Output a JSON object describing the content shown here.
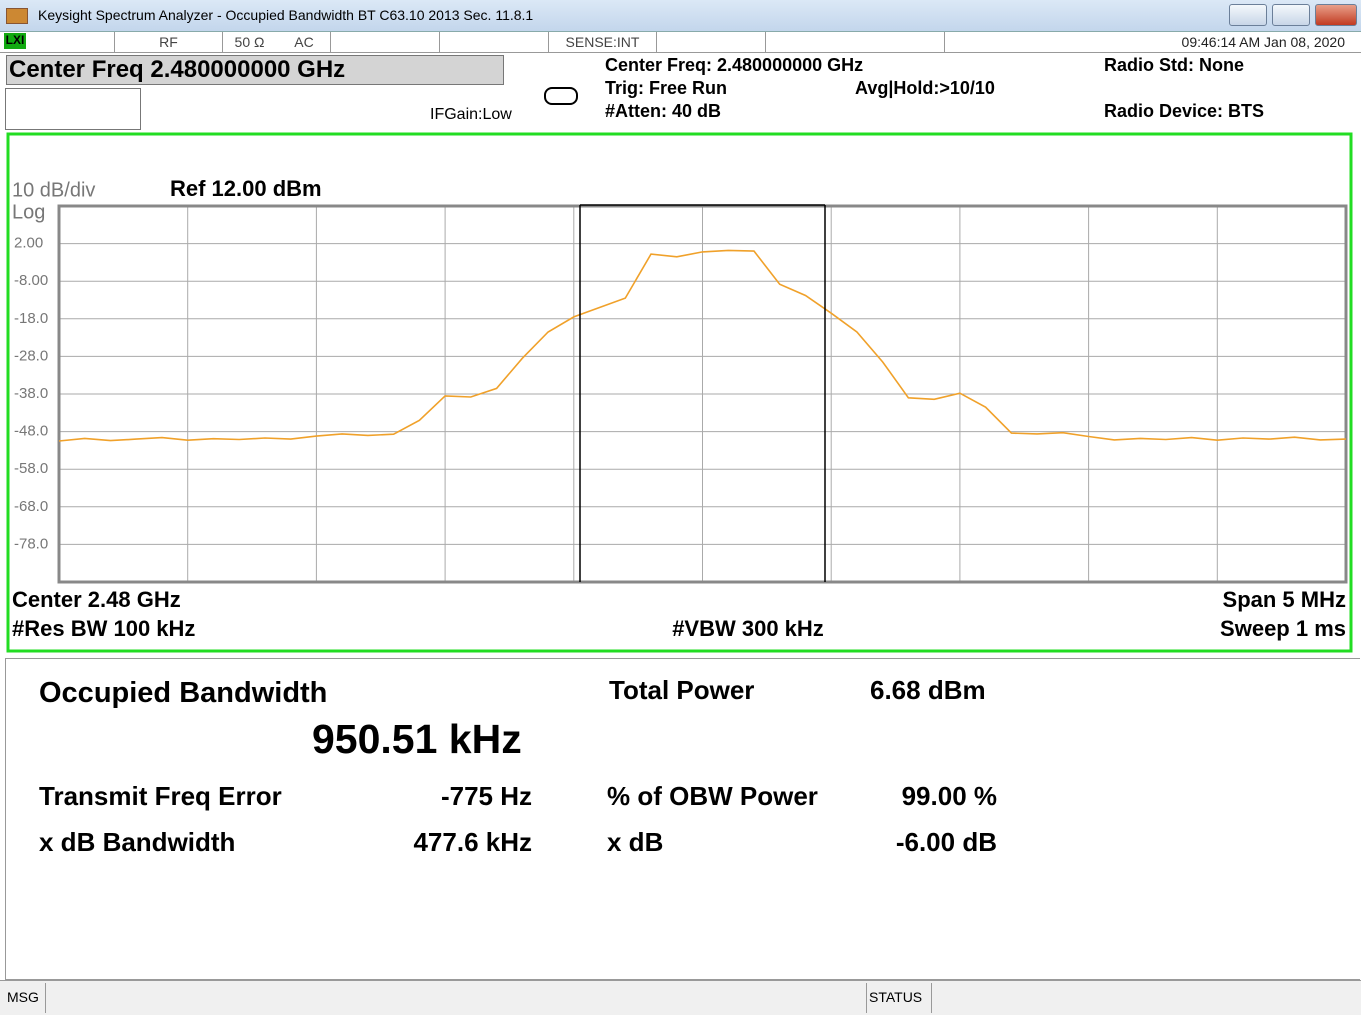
{
  "window": {
    "title": "Keysight Spectrum Analyzer - Occupied Bandwidth BT C63.10 2013 Sec. 11.8.1"
  },
  "status_row": {
    "rf": "RF",
    "impedance": "50 Ω",
    "coupling": "AC",
    "sense": "SENSE:INT",
    "datetime": "09:46:14 AM Jan 08, 2020"
  },
  "header": {
    "center_freq_box": "Center Freq 2.480000000 GHz",
    "if_gain": "IFGain:Low",
    "center_freq": "Center Freq: 2.480000000 GHz",
    "trig": "Trig: Free Run",
    "atten": "#Atten: 40 dB",
    "avg_hold": "Avg|Hold:>10/10",
    "radio_std": "Radio Std: None",
    "radio_device": "Radio Device: BTS"
  },
  "chart_data": {
    "type": "line",
    "scale_label": "10 dB/div",
    "log_label": "Log",
    "ref_label": "Ref 12.00 dBm",
    "ylim": [
      -88,
      12
    ],
    "yticks": [
      {
        "value": 2,
        "label": "2.00"
      },
      {
        "value": -8,
        "label": "-8.00"
      },
      {
        "value": -18,
        "label": "-18.0"
      },
      {
        "value": -28,
        "label": "-28.0"
      },
      {
        "value": -38,
        "label": "-38.0"
      },
      {
        "value": -48,
        "label": "-48.0"
      },
      {
        "value": -58,
        "label": "-58.0"
      },
      {
        "value": -68,
        "label": "-68.0"
      },
      {
        "value": -78,
        "label": "-78.0"
      }
    ],
    "grid": true,
    "series": [
      {
        "color": "#f0a12a",
        "values": [
          -50.5,
          -49.8,
          -50.4,
          -50.0,
          -49.6,
          -50.3,
          -49.9,
          -50.1,
          -49.7,
          -50.0,
          -49.2,
          -48.6,
          -49.0,
          -48.7,
          -45.0,
          -38.5,
          -38.8,
          -36.5,
          -28.5,
          -21.5,
          -17.5,
          -15.0,
          -12.5,
          -0.8,
          -1.5,
          -0.2,
          0.2,
          0.0,
          -8.8,
          -11.8,
          -16.5,
          -21.5,
          -29.5,
          -39.0,
          -39.4,
          -37.8,
          -41.5,
          -48.4,
          -48.6,
          -48.3,
          -49.3,
          -50.2,
          -49.8,
          -50.1,
          -49.6,
          -50.3,
          -49.7,
          -50.0,
          -49.5,
          -50.2,
          -50.0
        ]
      }
    ],
    "footer": {
      "center": "Center  2.48 GHz",
      "res_bw": "#Res BW  100 kHz",
      "vbw": "#VBW  300 kHz",
      "span": "Span 5 MHz",
      "sweep": "Sweep  1 ms"
    }
  },
  "results": {
    "obw_label": "Occupied Bandwidth",
    "obw_value": "950.51 kHz",
    "total_power_label": "Total Power",
    "total_power_value": "6.68 dBm",
    "freq_error_label": "Transmit Freq Error",
    "freq_error_value": "-775 Hz",
    "obw_power_label": "% of OBW Power",
    "obw_power_value": "99.00 %",
    "xdb_bw_label": "x dB Bandwidth",
    "xdb_bw_value": "477.6 kHz",
    "xdb_label": "x dB",
    "xdb_value": "-6.00 dB"
  },
  "bottom": {
    "msg": "MSG",
    "status": "STATUS"
  }
}
